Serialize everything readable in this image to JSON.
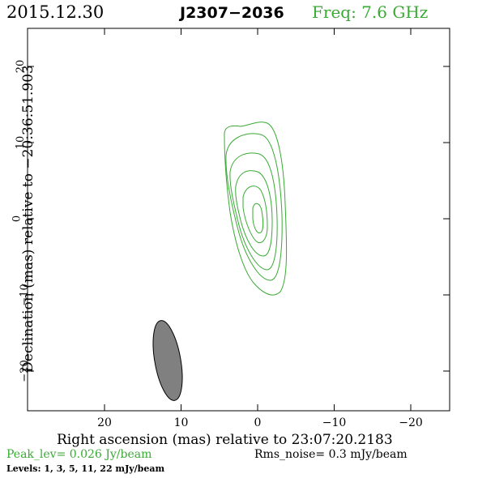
{
  "header": {
    "date": "2015.12.30",
    "source": "J2307−2036",
    "frequency": "Freq:  7.6 GHz"
  },
  "axes": {
    "xlabel": "Right ascension (mas) relative to 23:07:20.2183",
    "ylabel": "Declination (mas) relative to −20:36:51.903",
    "x_ticks": [
      "20",
      "10",
      "0",
      "−10",
      "−20"
    ],
    "y_ticks": [
      "20",
      "10",
      "0",
      "−10",
      "−20"
    ]
  },
  "footer": {
    "peak": "Peak_lev=  0.026 Jy/beam",
    "rms": "Rms_noise=   0.3 mJy/beam",
    "levels": "Levels:    1,    3,    5,   11,   22 mJy/beam"
  },
  "colors": {
    "contour": "#3aaa35",
    "beam_fill": "#808080",
    "frame": "#000000"
  },
  "image_data": {
    "x_range_mas": [
      25,
      -25
    ],
    "y_range_mas": [
      -25,
      25
    ],
    "contour_levels_mjy": [
      1,
      3,
      5,
      11,
      22
    ],
    "beam": {
      "ra_mas": 11.5,
      "dec_mas": -18.5
    }
  }
}
